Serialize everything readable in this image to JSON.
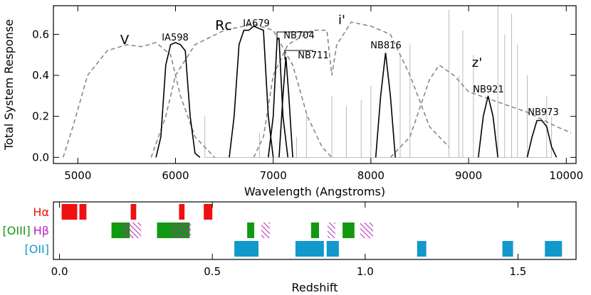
{
  "chart_data": [
    {
      "type": "line",
      "xlabel": "Wavelength (Angstroms)",
      "ylabel": "Total System Response",
      "xlim": [
        4750,
        10100
      ],
      "ylim": [
        -0.03,
        0.74
      ],
      "xticks": [
        5000,
        6000,
        7000,
        8000,
        9000,
        10000
      ],
      "yticks": [
        {
          "value": 0,
          "label": "0.0"
        },
        0.2,
        0.4,
        0.6
      ],
      "series": [
        {
          "name": "V",
          "color": "#888888",
          "dash": true,
          "x": [
            4850,
            4950,
            5100,
            5300,
            5500,
            5650,
            5800,
            5950,
            6050,
            6200,
            6400
          ],
          "values": [
            0,
            0.15,
            0.4,
            0.52,
            0.55,
            0.54,
            0.56,
            0.5,
            0.3,
            0.1,
            0
          ]
        },
        {
          "name": "Rc",
          "color": "#888888",
          "dash": true,
          "x": [
            5750,
            5900,
            6000,
            6200,
            6500,
            6800,
            7000,
            7200,
            7350,
            7500,
            7600
          ],
          "values": [
            0,
            0.2,
            0.4,
            0.55,
            0.62,
            0.65,
            0.62,
            0.45,
            0.2,
            0.05,
            0
          ]
        },
        {
          "name": "i'",
          "color": "#888888",
          "dash": true,
          "x": [
            6800,
            6900,
            7000,
            7150,
            7400,
            7550,
            7600,
            7650,
            7800,
            8000,
            8200,
            8400,
            8600,
            8800
          ],
          "values": [
            0,
            0.1,
            0.4,
            0.55,
            0.62,
            0.62,
            0.4,
            0.55,
            0.66,
            0.64,
            0.6,
            0.4,
            0.15,
            0.05
          ]
        },
        {
          "name": "z'",
          "color": "#888888",
          "dash": true,
          "x": [
            8200,
            8400,
            8600,
            8700,
            8850,
            9000,
            9300,
            9600,
            9900,
            10050
          ],
          "values": [
            0,
            0.1,
            0.38,
            0.45,
            0.4,
            0.32,
            0.27,
            0.22,
            0.15,
            0.12
          ]
        },
        {
          "name": "IA598",
          "color": "#000000",
          "dash": false,
          "x": [
            5800,
            5850,
            5900,
            5950,
            6000,
            6050,
            6100,
            6150,
            6200,
            6250
          ],
          "values": [
            0,
            0.1,
            0.45,
            0.55,
            0.56,
            0.55,
            0.52,
            0.2,
            0.02,
            0
          ]
        },
        {
          "name": "IA679",
          "color": "#000000",
          "dash": false,
          "x": [
            6550,
            6600,
            6650,
            6700,
            6750,
            6800,
            6850,
            6900,
            6950,
            7000
          ],
          "values": [
            0,
            0.2,
            0.55,
            0.62,
            0.62,
            0.64,
            0.63,
            0.62,
            0.2,
            0
          ]
        },
        {
          "name": "NB704",
          "color": "#000000",
          "dash": false,
          "x": [
            6950,
            7000,
            7040,
            7060,
            7100,
            7150
          ],
          "values": [
            0,
            0.2,
            0.58,
            0.58,
            0.2,
            0
          ]
        },
        {
          "name": "NB711",
          "color": "#000000",
          "dash": false,
          "x": [
            7060,
            7100,
            7130,
            7160,
            7200
          ],
          "values": [
            0,
            0.3,
            0.49,
            0.3,
            0
          ]
        },
        {
          "name": "NB816",
          "color": "#000000",
          "dash": false,
          "x": [
            8050,
            8100,
            8150,
            8200,
            8250
          ],
          "values": [
            0,
            0.3,
            0.51,
            0.3,
            0
          ]
        },
        {
          "name": "NB921",
          "color": "#000000",
          "dash": false,
          "x": [
            9100,
            9150,
            9200,
            9250,
            9300
          ],
          "values": [
            0,
            0.2,
            0.3,
            0.2,
            0
          ]
        },
        {
          "name": "NB973",
          "color": "#000000",
          "dash": false,
          "x": [
            9600,
            9650,
            9700,
            9750,
            9800,
            9850,
            9900
          ],
          "values": [
            0,
            0.1,
            0.18,
            0.18,
            0.15,
            0.05,
            0
          ]
        },
        {
          "color": "#aaaaaa",
          "dash": false,
          "x": [
            6300,
            6300,
            6300,
            6860,
            6860,
            6860,
            7240,
            7240,
            7240,
            7340,
            7340,
            7340,
            7600,
            7600,
            7600,
            7750,
            7750,
            7750,
            7900,
            7900,
            7900,
            8000,
            8000,
            8000,
            8300,
            8300,
            8300,
            8400,
            8400,
            8400,
            8800,
            8800,
            8800,
            8900,
            8900,
            8900,
            8940,
            8940,
            8940,
            9050,
            9050,
            9050,
            9300,
            9300,
            9300,
            9370,
            9370,
            9370,
            9440,
            9440,
            9440,
            9500,
            9500,
            9500,
            9600,
            9600,
            9600,
            9800,
            9800,
            9800,
            9850,
            9850,
            9850
          ],
          "values": [
            0,
            0.2,
            0,
            0,
            0.12,
            0,
            0,
            0.1,
            0,
            0,
            0.22,
            0,
            0,
            0.3,
            0,
            0,
            0.25,
            0,
            0,
            0.28,
            0,
            0,
            0.35,
            0,
            0,
            0.5,
            0,
            0,
            0.55,
            0,
            0,
            0.72,
            0,
            0,
            0.4,
            0,
            0,
            0.62,
            0,
            0,
            0.5,
            0,
            0,
            0.75,
            0,
            0,
            0.6,
            0,
            0,
            0.7,
            0,
            0,
            0.55,
            0,
            0,
            0.4,
            0,
            0,
            0.3,
            0,
            0,
            0.2,
            0
          ]
        }
      ]
    },
    {
      "type": "range",
      "xlabel": "Redshift",
      "xlim": [
        -0.02,
        1.69
      ],
      "xticks": [
        {
          "value": 0,
          "label": "0.0"
        },
        0.5,
        {
          "value": 1,
          "label": "1.0"
        },
        1.5
      ],
      "series": [
        {
          "name": "Hα",
          "color": "#ee1111",
          "pattern": "solid",
          "ranges": [
            [
              0.007,
              0.058
            ],
            [
              0.065,
              0.088
            ],
            [
              0.233,
              0.251
            ],
            [
              0.391,
              0.409
            ],
            [
              0.472,
              0.5
            ]
          ]
        },
        {
          "name": "[OIII]",
          "color": "#119911",
          "pattern": "solid",
          "ranges": [
            [
              0.17,
              0.23
            ],
            [
              0.319,
              0.426
            ],
            [
              0.614,
              0.637
            ],
            [
              0.823,
              0.849
            ],
            [
              0.926,
              0.965
            ]
          ]
        },
        {
          "name": "Hβ",
          "color": "#bb22bb",
          "pattern": "hatch",
          "ranges": [
            [
              0.207,
              0.267
            ],
            [
              0.365,
              0.43
            ],
            [
              0.66,
              0.688
            ],
            [
              0.877,
              0.902
            ],
            [
              0.984,
              1.026
            ]
          ]
        },
        {
          "name": "[OII]",
          "color": "#1199cc",
          "pattern": "solid",
          "ranges": [
            [
              0.572,
              0.651
            ],
            [
              0.772,
              0.865
            ],
            [
              0.874,
              0.914
            ],
            [
              1.17,
              1.2
            ],
            [
              1.449,
              1.484
            ],
            [
              1.588,
              1.644
            ]
          ]
        }
      ]
    }
  ]
}
